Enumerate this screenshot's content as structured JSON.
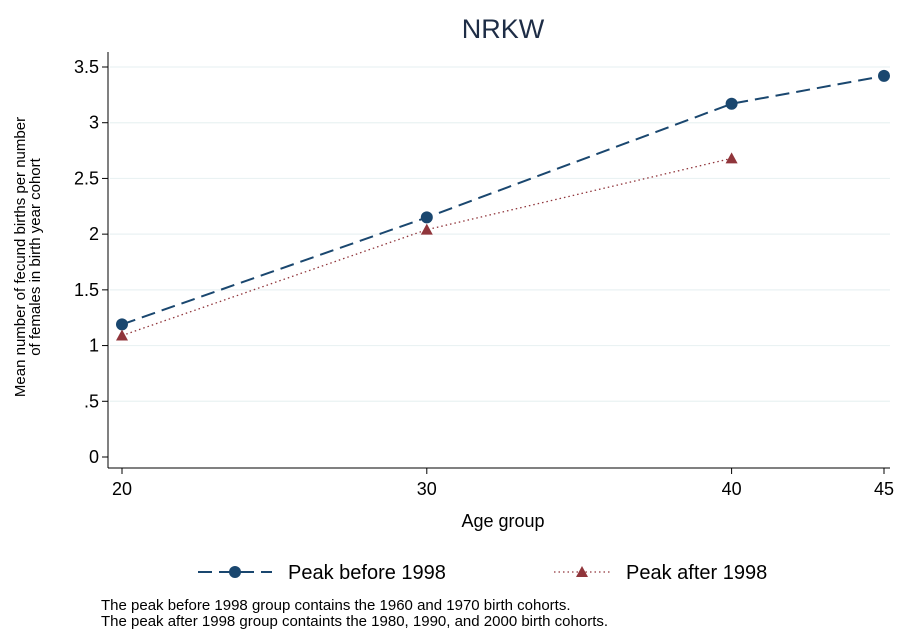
{
  "chart_data": {
    "type": "line",
    "title": "NRKW",
    "xlabel": "Age group",
    "ylabel_lines": [
      "Mean number of fecund births per number",
      "of females in birth year cohort"
    ],
    "x_ticks": [
      20,
      30,
      40,
      45
    ],
    "x_tick_labels": [
      "20",
      "30",
      "40",
      "45"
    ],
    "y_ticks": [
      0,
      0.5,
      1,
      1.5,
      2,
      2.5,
      3,
      3.5
    ],
    "y_tick_labels": [
      "0",
      ".5",
      "1",
      "1.5",
      "2",
      "2.5",
      "3",
      "3.5"
    ],
    "xlim": [
      20,
      45
    ],
    "ylim": [
      0,
      3.5
    ],
    "grid": true,
    "legend_position": "bottom",
    "series": [
      {
        "name": "Peak before 1998",
        "x": [
          20,
          30,
          40,
          45
        ],
        "y": [
          1.19,
          2.15,
          3.17,
          3.42
        ],
        "color": "#1a476f",
        "line_style": "dashed",
        "marker": "circle"
      },
      {
        "name": "Peak after 1998",
        "x": [
          20,
          30,
          40
        ],
        "y": [
          1.09,
          2.04,
          2.68
        ],
        "color": "#90353b",
        "line_style": "dotted",
        "marker": "triangle"
      }
    ]
  },
  "notes": [
    "The peak before 1998 group contains the 1960 and 1970 birth cohorts.",
    "The peak after 1998 group containts the 1980, 1990, and 2000 birth cohorts."
  ]
}
